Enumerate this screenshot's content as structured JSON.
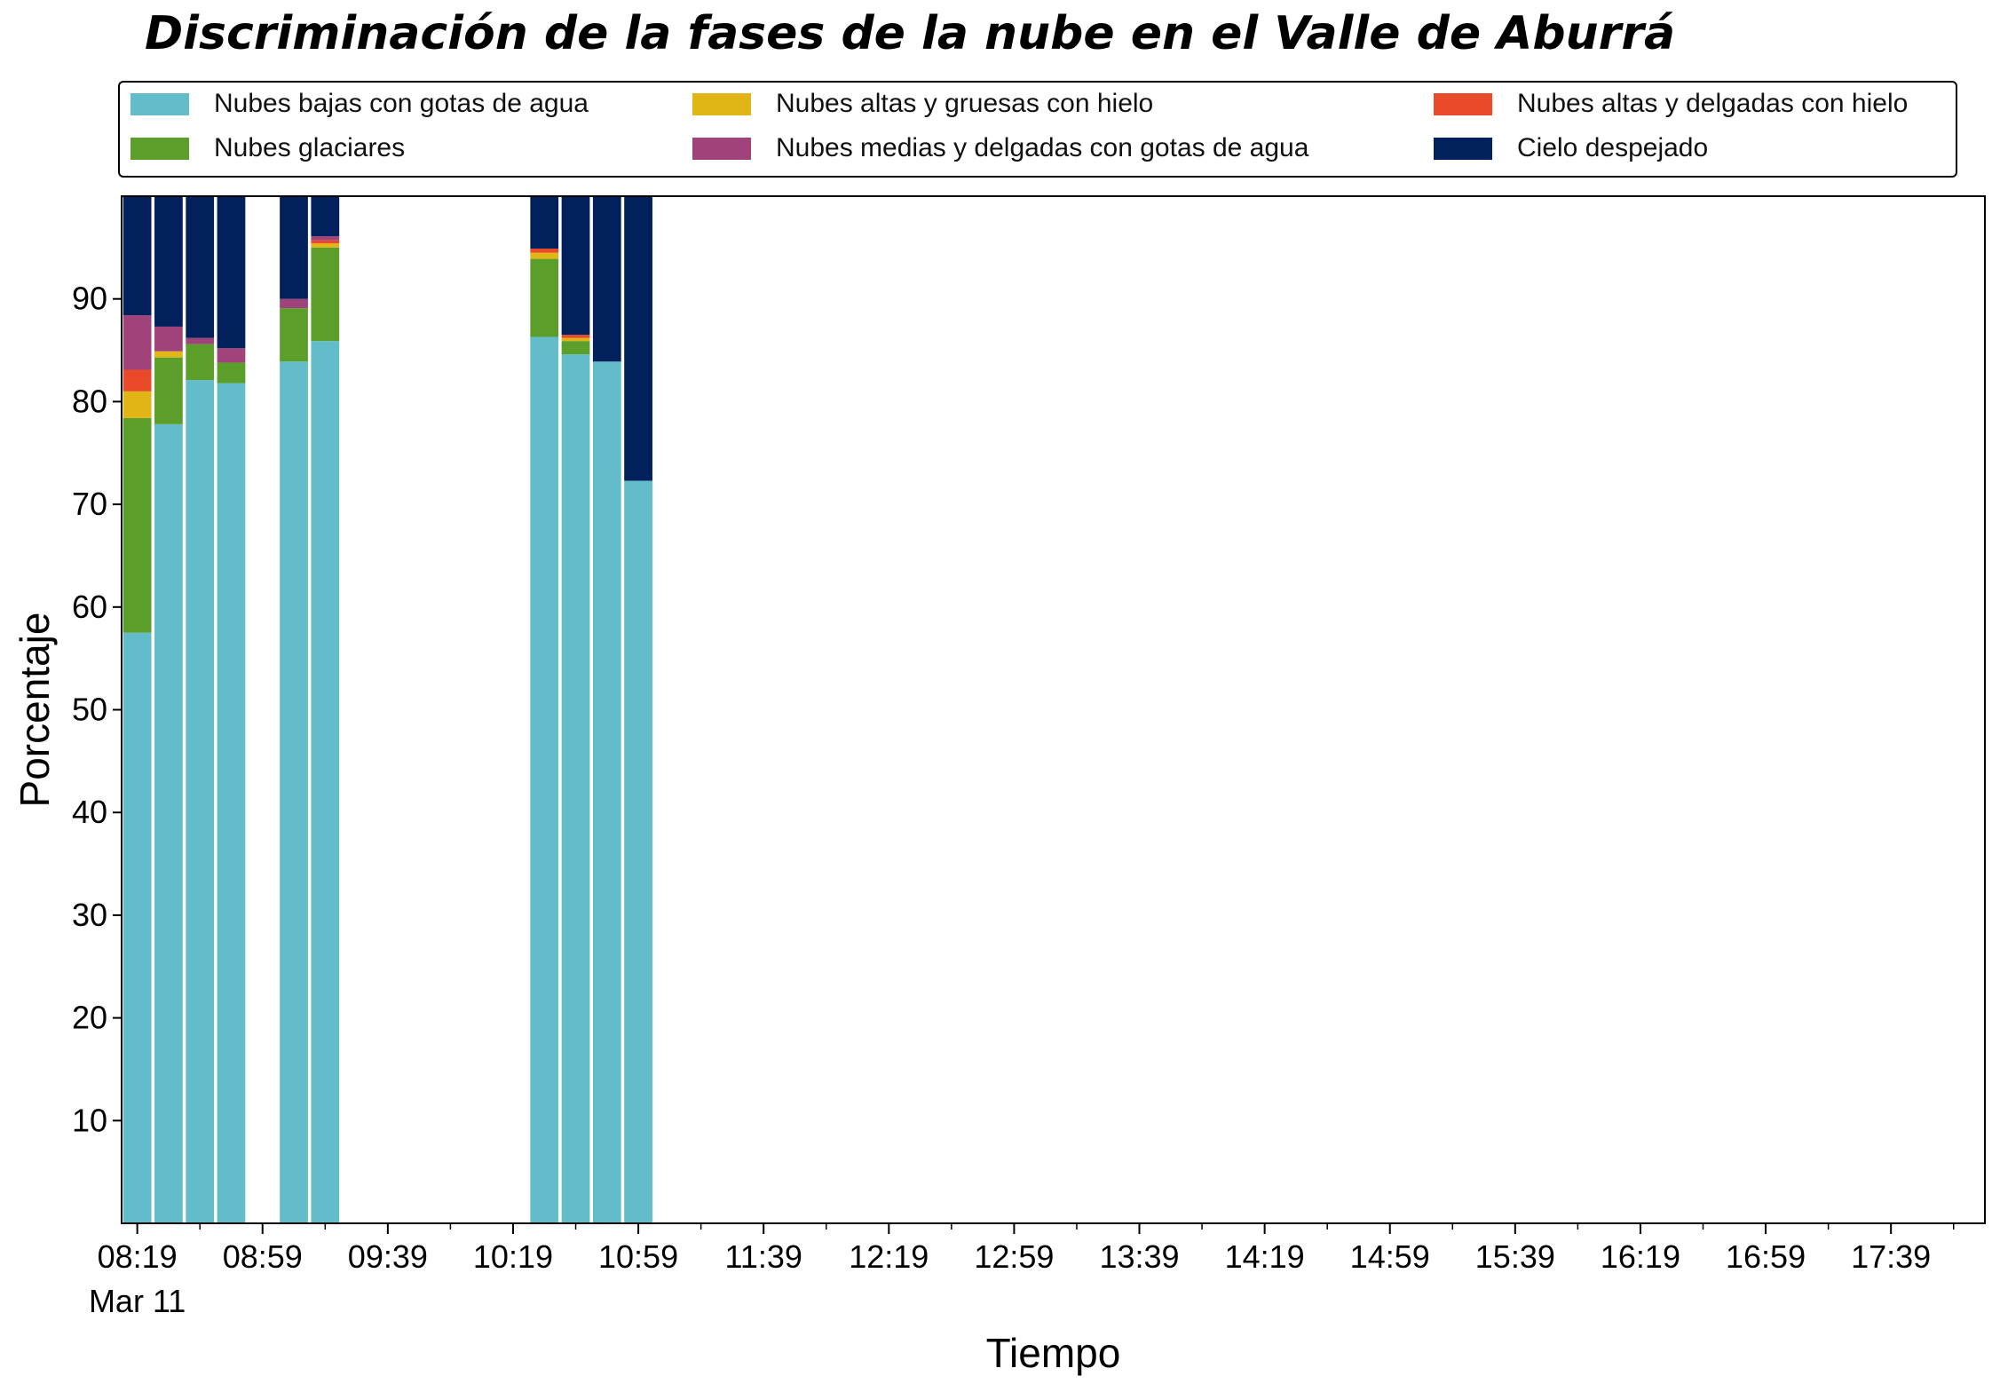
{
  "chart_data": {
    "type": "bar",
    "title": "Discriminación de la fases de la nube en el Valle de Aburrá",
    "xlabel": "Tiempo",
    "ylabel": "Porcentaje",
    "date_label": "Mar 11",
    "ylim": [
      0,
      100
    ],
    "yticks": [
      10,
      20,
      30,
      40,
      50,
      60,
      70,
      80,
      90
    ],
    "x_range": [
      "08:14",
      "18:09"
    ],
    "xticks_major": [
      "08:19",
      "08:59",
      "09:39",
      "10:19",
      "10:59",
      "11:39",
      "12:19",
      "12:59",
      "13:39",
      "14:19",
      "14:59",
      "15:39",
      "16:19",
      "16:59",
      "17:39"
    ],
    "xticks_minor": [
      "08:39",
      "09:19",
      "09:59",
      "10:39",
      "11:19",
      "11:59",
      "12:39",
      "13:19",
      "13:59",
      "14:39",
      "15:19",
      "15:59",
      "16:39",
      "17:19",
      "17:59"
    ],
    "legend_placement": "top, above plot",
    "grid": false,
    "categories": [
      "08:19",
      "08:29",
      "08:39",
      "08:49",
      "09:09",
      "09:19",
      "10:29",
      "10:39",
      "10:49",
      "10:59"
    ],
    "series": [
      {
        "name": "Nubes bajas con gotas de agua",
        "color": "#63bcc9",
        "values": [
          57.5,
          77.8,
          82.1,
          81.8,
          83.9,
          85.9,
          86.3,
          84.6,
          83.9,
          72.3
        ]
      },
      {
        "name": "Nubes glaciares",
        "color": "#5c9e2a",
        "values": [
          20.9,
          6.5,
          3.5,
          2.0,
          5.2,
          9.1,
          7.6,
          1.3,
          0,
          0
        ]
      },
      {
        "name": "Nubes altas y gruesas con hielo",
        "color": "#e2b517",
        "values": [
          2.6,
          0.6,
          0,
          0,
          0,
          0.4,
          0.6,
          0.3,
          0,
          0
        ]
      },
      {
        "name": "Nubes altas y delgadas con hielo",
        "color": "#e84a2a",
        "values": [
          2.1,
          0,
          0,
          0,
          0,
          0.3,
          0.4,
          0.3,
          0,
          0
        ]
      },
      {
        "name": "Nubes medias y delgadas con gotas de agua",
        "color": "#a0437a",
        "values": [
          5.3,
          2.4,
          0.6,
          1.4,
          0.9,
          0.4,
          0,
          0,
          0,
          0
        ]
      },
      {
        "name": "Cielo despejado",
        "color": "#02205b",
        "values": [
          11.6,
          12.7,
          13.8,
          14.8,
          10.0,
          3.9,
          5.1,
          13.5,
          16.1,
          27.7
        ]
      }
    ],
    "legend_order": [
      "Nubes bajas con gotas de agua",
      "Nubes glaciares",
      "Nubes altas y gruesas con hielo",
      "Nubes medias y delgadas con gotas de agua",
      "Nubes altas y delgadas con hielo",
      "Cielo despejado"
    ]
  }
}
